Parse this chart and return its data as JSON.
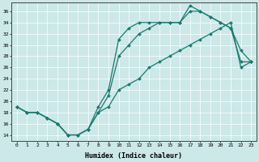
{
  "xlabel": "Humidex (Indice chaleur)",
  "bg_color": "#cce8e8",
  "line_color": "#1a7a6e",
  "xlim": [
    -0.5,
    23.5
  ],
  "ylim": [
    13.0,
    37.5
  ],
  "xticks": [
    0,
    1,
    2,
    3,
    4,
    5,
    6,
    7,
    8,
    9,
    10,
    11,
    12,
    13,
    14,
    15,
    16,
    17,
    18,
    19,
    20,
    21,
    22,
    23
  ],
  "yticks": [
    14,
    16,
    18,
    20,
    22,
    24,
    26,
    28,
    30,
    32,
    34,
    36
  ],
  "line1_x": [
    0,
    1,
    2,
    3,
    4,
    5,
    6,
    7,
    8,
    9,
    10,
    11,
    12,
    13,
    14,
    15,
    16,
    17,
    18,
    19,
    20,
    21,
    22,
    23
  ],
  "line1_y": [
    19,
    18,
    18,
    17,
    16,
    14,
    14,
    15,
    19,
    22,
    31,
    33,
    34,
    34,
    34,
    34,
    34,
    37,
    36,
    35,
    34,
    33,
    29,
    27
  ],
  "line2_x": [
    0,
    1,
    2,
    3,
    4,
    5,
    6,
    7,
    8,
    9,
    10,
    11,
    12,
    13,
    14,
    15,
    16,
    17,
    18,
    19,
    20,
    21,
    22,
    23
  ],
  "line2_y": [
    19,
    18,
    18,
    17,
    16,
    14,
    14,
    15,
    18,
    21,
    28,
    30,
    32,
    33,
    34,
    34,
    34,
    36,
    36,
    35,
    34,
    33,
    27,
    27
  ],
  "line3_x": [
    0,
    1,
    2,
    3,
    4,
    5,
    6,
    7,
    8,
    9,
    10,
    11,
    12,
    13,
    14,
    15,
    16,
    17,
    18,
    19,
    20,
    21,
    22,
    23
  ],
  "line3_y": [
    19,
    18,
    18,
    17,
    16,
    14,
    14,
    15,
    18,
    19,
    22,
    23,
    24,
    26,
    27,
    28,
    29,
    30,
    31,
    32,
    33,
    34,
    26,
    27
  ]
}
